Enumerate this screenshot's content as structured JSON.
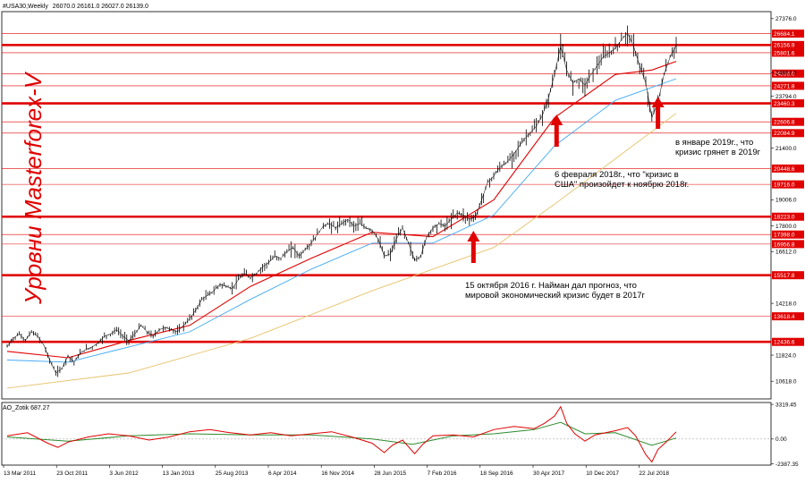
{
  "header": {
    "instrument": "#USA30,Weekly",
    "ohlc": "26070.0 26161.0 26027.0 26139.0"
  },
  "watermark": "Уровни Masterforex-V",
  "colors": {
    "background": "#ffffff",
    "price": "#000000",
    "level_line": "#e00000",
    "level_label_bg": "#e00000",
    "ma_fast": "#e00000",
    "ma_slow": "#3fa9f5",
    "ma_long": "#e6c36b",
    "arrow": "#e00000",
    "ao_line": "#e00000",
    "ao_signal": "#2e8b2e"
  },
  "chart_data": [
    {
      "type": "line",
      "title": "",
      "ylim": [
        9800,
        27700
      ],
      "price_axis_ticks": [
        27376.0,
        24883.0,
        23794.0,
        21400.0,
        19006.0,
        17800.0,
        16612.0,
        14218.0,
        11824.0,
        10618.0
      ],
      "x_tick_labels": [
        "13 Mar 2011",
        "23 Oct 2011",
        "3 Jun 2012",
        "13 Jan 2013",
        "25 Aug 2013",
        "6 Apr 2014",
        "16 Nov 2014",
        "28 Jun 2015",
        "7 Feb 2016",
        "18 Sep 2016",
        "30 Apr 2017",
        "10 Dec 2017",
        "22 Jul 2018"
      ],
      "levels": [
        {
          "value": 26684.1,
          "style": "thin"
        },
        {
          "value": 26156.9,
          "style": "thick"
        },
        {
          "value": 25801.6,
          "style": "thin"
        },
        {
          "value": 24836.0,
          "style": "thin"
        },
        {
          "value": 24271.8,
          "style": "thin"
        },
        {
          "value": 23460.3,
          "style": "thick"
        },
        {
          "value": 22606.8,
          "style": "thin"
        },
        {
          "value": 22084.9,
          "style": "thin"
        },
        {
          "value": 20448.6,
          "style": "thin"
        },
        {
          "value": 19716.0,
          "style": "thin"
        },
        {
          "value": 18223.0,
          "style": "thick"
        },
        {
          "value": 17398.0,
          "style": "thin"
        },
        {
          "value": 16956.8,
          "style": "thin"
        },
        {
          "value": 15517.8,
          "style": "thick"
        },
        {
          "value": 13618.4,
          "style": "thin"
        },
        {
          "value": 12436.6,
          "style": "thick"
        }
      ],
      "price_path": [
        [
          0,
          12200
        ],
        [
          3,
          12600
        ],
        [
          6,
          12800
        ],
        [
          9,
          12500
        ],
        [
          12,
          12900
        ],
        [
          15,
          12700
        ],
        [
          18,
          12300
        ],
        [
          21,
          11600
        ],
        [
          24,
          11000
        ],
        [
          27,
          11200
        ],
        [
          30,
          11800
        ],
        [
          33,
          11500
        ],
        [
          36,
          11900
        ],
        [
          39,
          12100
        ],
        [
          42,
          12200
        ],
        [
          45,
          12400
        ],
        [
          48,
          12700
        ],
        [
          51,
          12800
        ],
        [
          54,
          13000
        ],
        [
          57,
          12700
        ],
        [
          60,
          12500
        ],
        [
          63,
          12800
        ],
        [
          66,
          13200
        ],
        [
          69,
          12900
        ],
        [
          72,
          12700
        ],
        [
          75,
          13000
        ],
        [
          78,
          13100
        ],
        [
          81,
          13000
        ],
        [
          84,
          12900
        ],
        [
          87,
          13200
        ],
        [
          90,
          13500
        ],
        [
          93,
          13900
        ],
        [
          96,
          14400
        ],
        [
          99,
          14600
        ],
        [
          102,
          14800
        ],
        [
          105,
          15100
        ],
        [
          108,
          15000
        ],
        [
          111,
          14900
        ],
        [
          114,
          15300
        ],
        [
          117,
          15600
        ],
        [
          120,
          15400
        ],
        [
          123,
          15600
        ],
        [
          126,
          15900
        ],
        [
          129,
          16100
        ],
        [
          132,
          16400
        ],
        [
          135,
          16300
        ],
        [
          138,
          16600
        ],
        [
          141,
          16800
        ],
        [
          144,
          16400
        ],
        [
          147,
          16700
        ],
        [
          150,
          17000
        ],
        [
          153,
          17400
        ],
        [
          156,
          17800
        ],
        [
          159,
          17900
        ],
        [
          162,
          17700
        ],
        [
          165,
          17900
        ],
        [
          168,
          18100
        ],
        [
          171,
          17800
        ],
        [
          174,
          17900
        ],
        [
          177,
          17700
        ],
        [
          180,
          17600
        ],
        [
          183,
          17200
        ],
        [
          186,
          16400
        ],
        [
          189,
          16500
        ],
        [
          192,
          17200
        ],
        [
          195,
          17700
        ],
        [
          198,
          17000
        ],
        [
          201,
          16200
        ],
        [
          204,
          16400
        ],
        [
          207,
          17300
        ],
        [
          210,
          17700
        ],
        [
          213,
          17900
        ],
        [
          216,
          17800
        ],
        [
          219,
          18100
        ],
        [
          222,
          18400
        ],
        [
          225,
          18300
        ],
        [
          228,
          18100
        ],
        [
          231,
          18200
        ],
        [
          234,
          19000
        ],
        [
          237,
          19800
        ],
        [
          240,
          20100
        ],
        [
          243,
          20500
        ],
        [
          246,
          20700
        ],
        [
          249,
          21000
        ],
        [
          252,
          21400
        ],
        [
          255,
          21800
        ],
        [
          258,
          22100
        ],
        [
          261,
          22400
        ],
        [
          264,
          22900
        ],
        [
          267,
          23700
        ],
        [
          270,
          24800
        ],
        [
          273,
          26100
        ],
        [
          276,
          25000
        ],
        [
          279,
          24400
        ],
        [
          282,
          24600
        ],
        [
          285,
          24300
        ],
        [
          288,
          24800
        ],
        [
          291,
          25200
        ],
        [
          294,
          25600
        ],
        [
          297,
          25800
        ],
        [
          300,
          26000
        ],
        [
          303,
          26400
        ],
        [
          306,
          26700
        ],
        [
          309,
          26100
        ],
        [
          312,
          25200
        ],
        [
          315,
          24400
        ],
        [
          318,
          22800
        ],
        [
          321,
          23500
        ],
        [
          324,
          24800
        ],
        [
          327,
          25600
        ],
        [
          330,
          26139
        ]
      ],
      "ma_fast": [
        [
          0,
          12000
        ],
        [
          30,
          11700
        ],
        [
          60,
          12500
        ],
        [
          90,
          13200
        ],
        [
          120,
          15000
        ],
        [
          150,
          16300
        ],
        [
          180,
          17500
        ],
        [
          210,
          17300
        ],
        [
          240,
          19000
        ],
        [
          270,
          22800
        ],
        [
          300,
          24800
        ],
        [
          318,
          25000
        ],
        [
          330,
          25400
        ]
      ],
      "ma_slow": [
        [
          0,
          11600
        ],
        [
          30,
          11500
        ],
        [
          60,
          12200
        ],
        [
          90,
          12900
        ],
        [
          120,
          14400
        ],
        [
          150,
          15800
        ],
        [
          180,
          17000
        ],
        [
          210,
          17000
        ],
        [
          240,
          18300
        ],
        [
          270,
          21500
        ],
        [
          300,
          23600
        ],
        [
          318,
          24200
        ],
        [
          330,
          24600
        ]
      ],
      "ma_long": [
        [
          0,
          10300
        ],
        [
          60,
          11000
        ],
        [
          120,
          12600
        ],
        [
          180,
          14800
        ],
        [
          210,
          15800
        ],
        [
          240,
          16800
        ],
        [
          270,
          18800
        ],
        [
          300,
          20900
        ],
        [
          330,
          23000
        ]
      ],
      "annotations": [
        {
          "text_lines": [
            "15 октября 2016 г. Найман дал прогноз, что",
            "мировой экономический кризис будет в 2017г"
          ],
          "arrow_x": 230
        },
        {
          "text_lines": [
            "6 февраля 2018г., что \"кризис в",
            "США\" произойдет к ноябрю 2018г."
          ],
          "arrow_x": 271
        },
        {
          "text_lines": [
            "в январе 2019г., что",
            "кризис грянет в 2019г"
          ],
          "arrow_x": 321
        }
      ]
    },
    {
      "type": "line",
      "title": "AO_Zotik 687.27",
      "ylim": [
        -2500,
        3500
      ],
      "axis_ticks": [
        3319.45,
        0.0,
        -2387.35
      ],
      "zero_line": 0,
      "ao": [
        [
          0,
          300
        ],
        [
          10,
          600
        ],
        [
          20,
          -400
        ],
        [
          25,
          -800
        ],
        [
          30,
          -300
        ],
        [
          40,
          200
        ],
        [
          50,
          500
        ],
        [
          60,
          300
        ],
        [
          70,
          -100
        ],
        [
          80,
          200
        ],
        [
          90,
          700
        ],
        [
          100,
          900
        ],
        [
          110,
          600
        ],
        [
          120,
          400
        ],
        [
          130,
          600
        ],
        [
          140,
          300
        ],
        [
          150,
          500
        ],
        [
          160,
          700
        ],
        [
          170,
          200
        ],
        [
          180,
          -400
        ],
        [
          186,
          -1300
        ],
        [
          190,
          -600
        ],
        [
          195,
          -100
        ],
        [
          201,
          -1400
        ],
        [
          205,
          -500
        ],
        [
          210,
          300
        ],
        [
          220,
          400
        ],
        [
          230,
          200
        ],
        [
          240,
          900
        ],
        [
          250,
          1200
        ],
        [
          260,
          1000
        ],
        [
          265,
          1500
        ],
        [
          270,
          2200
        ],
        [
          273,
          3100
        ],
        [
          276,
          1500
        ],
        [
          280,
          500
        ],
        [
          285,
          -200
        ],
        [
          290,
          400
        ],
        [
          300,
          800
        ],
        [
          306,
          1100
        ],
        [
          310,
          300
        ],
        [
          315,
          -1500
        ],
        [
          318,
          -2200
        ],
        [
          321,
          -1000
        ],
        [
          325,
          -300
        ],
        [
          330,
          687
        ]
      ],
      "signal": [
        [
          0,
          200
        ],
        [
          30,
          -200
        ],
        [
          60,
          300
        ],
        [
          90,
          500
        ],
        [
          120,
          400
        ],
        [
          150,
          400
        ],
        [
          180,
          0
        ],
        [
          200,
          -500
        ],
        [
          220,
          300
        ],
        [
          240,
          500
        ],
        [
          260,
          900
        ],
        [
          273,
          1600
        ],
        [
          285,
          500
        ],
        [
          300,
          600
        ],
        [
          318,
          -600
        ],
        [
          330,
          100
        ]
      ]
    }
  ]
}
